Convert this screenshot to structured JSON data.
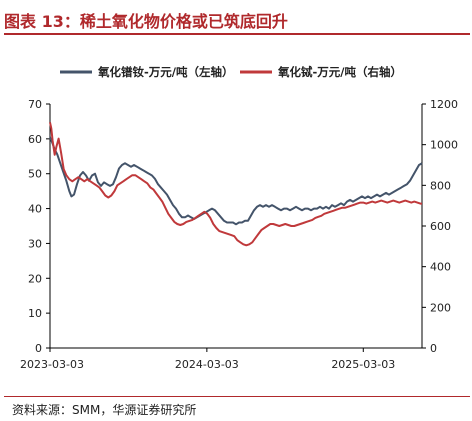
{
  "header": {
    "title": "图表 13：稀土氧化物价格或已筑底回升"
  },
  "footer": {
    "source": "资料来源：SMM，华源证券研究所"
  },
  "colors": {
    "title": "#b0292c",
    "series_left": "#44546a",
    "series_right": "#c0393b",
    "axis": "#000000"
  },
  "chart_data": {
    "type": "line",
    "x_tick_labels": [
      "2023-03-03",
      "2024-03-03",
      "2025-03-03"
    ],
    "x_tick_dates": [
      "2023-03-03",
      "2024-03-03",
      "2025-03-03"
    ],
    "x_range": [
      "2023-03-03",
      "2025-07-18"
    ],
    "y_left": {
      "min": 0,
      "max": 70,
      "step": 10,
      "ticks": [
        "0",
        "10",
        "20",
        "30",
        "40",
        "50",
        "60",
        "70"
      ]
    },
    "y_right": {
      "min": 0,
      "max": 1200,
      "step": 200,
      "ticks": [
        "0",
        "200",
        "400",
        "600",
        "800",
        "1000",
        "1200"
      ]
    },
    "grid": false,
    "legend_position": "top",
    "series": [
      {
        "name": "氧化镨钕-万元/吨（左轴）",
        "axis": "left",
        "color": "#44546a",
        "points": [
          [
            "2023-03-03",
            60.5
          ],
          [
            "2023-03-08",
            59.0
          ],
          [
            "2023-03-14",
            57.0
          ],
          [
            "2023-03-20",
            55.5
          ],
          [
            "2023-03-27",
            53.0
          ],
          [
            "2023-04-03",
            50.5
          ],
          [
            "2023-04-10",
            48.0
          ],
          [
            "2023-04-17",
            45.0
          ],
          [
            "2023-04-22",
            43.5
          ],
          [
            "2023-04-28",
            44.0
          ],
          [
            "2023-05-05",
            47.0
          ],
          [
            "2023-05-12",
            49.5
          ],
          [
            "2023-05-19",
            50.5
          ],
          [
            "2023-05-26",
            49.5
          ],
          [
            "2023-06-02",
            48.0
          ],
          [
            "2023-06-09",
            49.5
          ],
          [
            "2023-06-16",
            50.0
          ],
          [
            "2023-06-23",
            47.5
          ],
          [
            "2023-06-30",
            46.5
          ],
          [
            "2023-07-07",
            47.5
          ],
          [
            "2023-07-14",
            47.0
          ],
          [
            "2023-07-21",
            46.5
          ],
          [
            "2023-07-28",
            47.0
          ],
          [
            "2023-08-04",
            49.0
          ],
          [
            "2023-08-11",
            51.5
          ],
          [
            "2023-08-18",
            52.5
          ],
          [
            "2023-08-25",
            53.0
          ],
          [
            "2023-09-01",
            52.5
          ],
          [
            "2023-09-08",
            52.0
          ],
          [
            "2023-09-15",
            52.5
          ],
          [
            "2023-09-22",
            52.0
          ],
          [
            "2023-09-29",
            51.5
          ],
          [
            "2023-10-06",
            51.0
          ],
          [
            "2023-10-13",
            50.5
          ],
          [
            "2023-10-20",
            50.0
          ],
          [
            "2023-10-27",
            49.5
          ],
          [
            "2023-11-03",
            48.5
          ],
          [
            "2023-11-10",
            47.0
          ],
          [
            "2023-11-17",
            46.0
          ],
          [
            "2023-11-24",
            45.0
          ],
          [
            "2023-12-01",
            44.0
          ],
          [
            "2023-12-08",
            42.5
          ],
          [
            "2023-12-15",
            41.0
          ],
          [
            "2023-12-22",
            40.0
          ],
          [
            "2023-12-29",
            38.5
          ],
          [
            "2024-01-05",
            37.5
          ],
          [
            "2024-01-12",
            37.5
          ],
          [
            "2024-01-19",
            38.0
          ],
          [
            "2024-01-26",
            37.5
          ],
          [
            "2024-02-02",
            37.0
          ],
          [
            "2024-02-09",
            37.5
          ],
          [
            "2024-02-16",
            38.0
          ],
          [
            "2024-02-23",
            38.5
          ],
          [
            "2024-03-01",
            39.0
          ],
          [
            "2024-03-08",
            39.5
          ],
          [
            "2024-03-15",
            40.0
          ],
          [
            "2024-03-22",
            39.5
          ],
          [
            "2024-03-29",
            38.5
          ],
          [
            "2024-04-05",
            37.5
          ],
          [
            "2024-04-12",
            36.5
          ],
          [
            "2024-04-19",
            36.0
          ],
          [
            "2024-04-26",
            36.0
          ],
          [
            "2024-05-03",
            36.0
          ],
          [
            "2024-05-10",
            35.5
          ],
          [
            "2024-05-17",
            36.0
          ],
          [
            "2024-05-24",
            36.0
          ],
          [
            "2024-05-31",
            36.5
          ],
          [
            "2024-06-07",
            36.5
          ],
          [
            "2024-06-14",
            38.0
          ],
          [
            "2024-06-21",
            39.5
          ],
          [
            "2024-06-28",
            40.5
          ],
          [
            "2024-07-05",
            41.0
          ],
          [
            "2024-07-12",
            40.5
          ],
          [
            "2024-07-19",
            41.0
          ],
          [
            "2024-07-26",
            40.5
          ],
          [
            "2024-08-02",
            41.0
          ],
          [
            "2024-08-09",
            40.5
          ],
          [
            "2024-08-16",
            40.0
          ],
          [
            "2024-08-23",
            39.5
          ],
          [
            "2024-08-30",
            40.0
          ],
          [
            "2024-09-06",
            40.0
          ],
          [
            "2024-09-13",
            39.5
          ],
          [
            "2024-09-20",
            40.0
          ],
          [
            "2024-09-27",
            40.5
          ],
          [
            "2024-10-04",
            40.0
          ],
          [
            "2024-10-11",
            39.5
          ],
          [
            "2024-10-18",
            40.0
          ],
          [
            "2024-10-25",
            40.0
          ],
          [
            "2024-11-01",
            39.5
          ],
          [
            "2024-11-08",
            40.0
          ],
          [
            "2024-11-15",
            40.0
          ],
          [
            "2024-11-22",
            40.5
          ],
          [
            "2024-11-29",
            40.0
          ],
          [
            "2024-12-06",
            40.5
          ],
          [
            "2024-12-13",
            40.0
          ],
          [
            "2024-12-20",
            41.0
          ],
          [
            "2024-12-27",
            40.5
          ],
          [
            "2025-01-03",
            41.0
          ],
          [
            "2025-01-10",
            41.5
          ],
          [
            "2025-01-17",
            41.0
          ],
          [
            "2025-01-24",
            42.0
          ],
          [
            "2025-01-31",
            42.5
          ],
          [
            "2025-02-07",
            42.0
          ],
          [
            "2025-02-14",
            42.5
          ],
          [
            "2025-02-21",
            43.0
          ],
          [
            "2025-02-28",
            43.5
          ],
          [
            "2025-03-07",
            43.0
          ],
          [
            "2025-03-14",
            43.5
          ],
          [
            "2025-03-21",
            43.0
          ],
          [
            "2025-03-28",
            43.5
          ],
          [
            "2025-04-04",
            44.0
          ],
          [
            "2025-04-11",
            43.5
          ],
          [
            "2025-04-18",
            44.0
          ],
          [
            "2025-04-25",
            44.5
          ],
          [
            "2025-05-02",
            44.0
          ],
          [
            "2025-05-09",
            44.5
          ],
          [
            "2025-05-16",
            45.0
          ],
          [
            "2025-05-23",
            45.5
          ],
          [
            "2025-05-30",
            46.0
          ],
          [
            "2025-06-06",
            46.5
          ],
          [
            "2025-06-13",
            47.0
          ],
          [
            "2025-06-20",
            48.0
          ],
          [
            "2025-06-27",
            49.5
          ],
          [
            "2025-07-04",
            51.0
          ],
          [
            "2025-07-11",
            52.5
          ],
          [
            "2025-07-18",
            53.0
          ]
        ]
      },
      {
        "name": "氧化铽-万元/吨（右轴）",
        "axis": "right",
        "color": "#c0393b",
        "points": [
          [
            "2023-03-03",
            1110
          ],
          [
            "2023-03-06",
            1080
          ],
          [
            "2023-03-09",
            1020
          ],
          [
            "2023-03-14",
            950
          ],
          [
            "2023-03-18",
            990
          ],
          [
            "2023-03-23",
            1030
          ],
          [
            "2023-03-29",
            960
          ],
          [
            "2023-04-04",
            880
          ],
          [
            "2023-04-10",
            850
          ],
          [
            "2023-04-17",
            830
          ],
          [
            "2023-04-24",
            820
          ],
          [
            "2023-05-01",
            830
          ],
          [
            "2023-05-08",
            840
          ],
          [
            "2023-05-15",
            830
          ],
          [
            "2023-05-22",
            820
          ],
          [
            "2023-05-29",
            830
          ],
          [
            "2023-06-05",
            820
          ],
          [
            "2023-06-12",
            810
          ],
          [
            "2023-06-19",
            800
          ],
          [
            "2023-06-26",
            790
          ],
          [
            "2023-07-03",
            770
          ],
          [
            "2023-07-10",
            750
          ],
          [
            "2023-07-17",
            740
          ],
          [
            "2023-07-24",
            750
          ],
          [
            "2023-07-31",
            770
          ],
          [
            "2023-08-07",
            800
          ],
          [
            "2023-08-14",
            810
          ],
          [
            "2023-08-21",
            820
          ],
          [
            "2023-08-28",
            830
          ],
          [
            "2023-09-04",
            840
          ],
          [
            "2023-09-11",
            850
          ],
          [
            "2023-09-18",
            850
          ],
          [
            "2023-09-25",
            840
          ],
          [
            "2023-10-02",
            830
          ],
          [
            "2023-10-09",
            820
          ],
          [
            "2023-10-16",
            810
          ],
          [
            "2023-10-23",
            790
          ],
          [
            "2023-10-30",
            780
          ],
          [
            "2023-11-06",
            760
          ],
          [
            "2023-11-13",
            740
          ],
          [
            "2023-11-20",
            720
          ],
          [
            "2023-11-27",
            690
          ],
          [
            "2023-12-04",
            660
          ],
          [
            "2023-12-11",
            640
          ],
          [
            "2023-12-18",
            620
          ],
          [
            "2023-12-25",
            610
          ],
          [
            "2024-01-01",
            605
          ],
          [
            "2024-01-08",
            610
          ],
          [
            "2024-01-15",
            620
          ],
          [
            "2024-01-22",
            625
          ],
          [
            "2024-01-29",
            630
          ],
          [
            "2024-02-05",
            640
          ],
          [
            "2024-02-12",
            650
          ],
          [
            "2024-02-19",
            660
          ],
          [
            "2024-02-26",
            670
          ],
          [
            "2024-03-04",
            660
          ],
          [
            "2024-03-11",
            640
          ],
          [
            "2024-03-18",
            610
          ],
          [
            "2024-03-25",
            590
          ],
          [
            "2024-04-01",
            575
          ],
          [
            "2024-04-08",
            570
          ],
          [
            "2024-04-15",
            565
          ],
          [
            "2024-04-22",
            560
          ],
          [
            "2024-04-29",
            555
          ],
          [
            "2024-05-06",
            550
          ],
          [
            "2024-05-13",
            530
          ],
          [
            "2024-05-20",
            520
          ],
          [
            "2024-05-27",
            510
          ],
          [
            "2024-06-03",
            505
          ],
          [
            "2024-06-10",
            510
          ],
          [
            "2024-06-17",
            520
          ],
          [
            "2024-06-24",
            540
          ],
          [
            "2024-07-01",
            560
          ],
          [
            "2024-07-08",
            580
          ],
          [
            "2024-07-15",
            590
          ],
          [
            "2024-07-22",
            600
          ],
          [
            "2024-07-29",
            610
          ],
          [
            "2024-08-05",
            610
          ],
          [
            "2024-08-12",
            605
          ],
          [
            "2024-08-19",
            600
          ],
          [
            "2024-08-26",
            605
          ],
          [
            "2024-09-02",
            610
          ],
          [
            "2024-09-09",
            605
          ],
          [
            "2024-09-16",
            600
          ],
          [
            "2024-09-23",
            600
          ],
          [
            "2024-09-30",
            605
          ],
          [
            "2024-10-07",
            610
          ],
          [
            "2024-10-14",
            615
          ],
          [
            "2024-10-21",
            620
          ],
          [
            "2024-10-28",
            625
          ],
          [
            "2024-11-04",
            630
          ],
          [
            "2024-11-11",
            640
          ],
          [
            "2024-11-18",
            645
          ],
          [
            "2024-11-25",
            650
          ],
          [
            "2024-12-02",
            660
          ],
          [
            "2024-12-09",
            665
          ],
          [
            "2024-12-16",
            670
          ],
          [
            "2024-12-23",
            675
          ],
          [
            "2024-12-30",
            680
          ],
          [
            "2025-01-06",
            685
          ],
          [
            "2025-01-13",
            690
          ],
          [
            "2025-01-20",
            690
          ],
          [
            "2025-01-27",
            695
          ],
          [
            "2025-02-03",
            700
          ],
          [
            "2025-02-10",
            705
          ],
          [
            "2025-02-17",
            710
          ],
          [
            "2025-02-24",
            715
          ],
          [
            "2025-03-03",
            715
          ],
          [
            "2025-03-10",
            710
          ],
          [
            "2025-03-17",
            715
          ],
          [
            "2025-03-24",
            720
          ],
          [
            "2025-03-31",
            715
          ],
          [
            "2025-04-07",
            720
          ],
          [
            "2025-04-14",
            725
          ],
          [
            "2025-04-21",
            720
          ],
          [
            "2025-04-28",
            715
          ],
          [
            "2025-05-05",
            720
          ],
          [
            "2025-05-12",
            725
          ],
          [
            "2025-05-19",
            720
          ],
          [
            "2025-05-26",
            715
          ],
          [
            "2025-06-02",
            720
          ],
          [
            "2025-06-09",
            725
          ],
          [
            "2025-06-16",
            720
          ],
          [
            "2025-06-23",
            715
          ],
          [
            "2025-06-30",
            720
          ],
          [
            "2025-07-07",
            715
          ],
          [
            "2025-07-14",
            710
          ],
          [
            "2025-07-18",
            710
          ]
        ]
      }
    ]
  }
}
